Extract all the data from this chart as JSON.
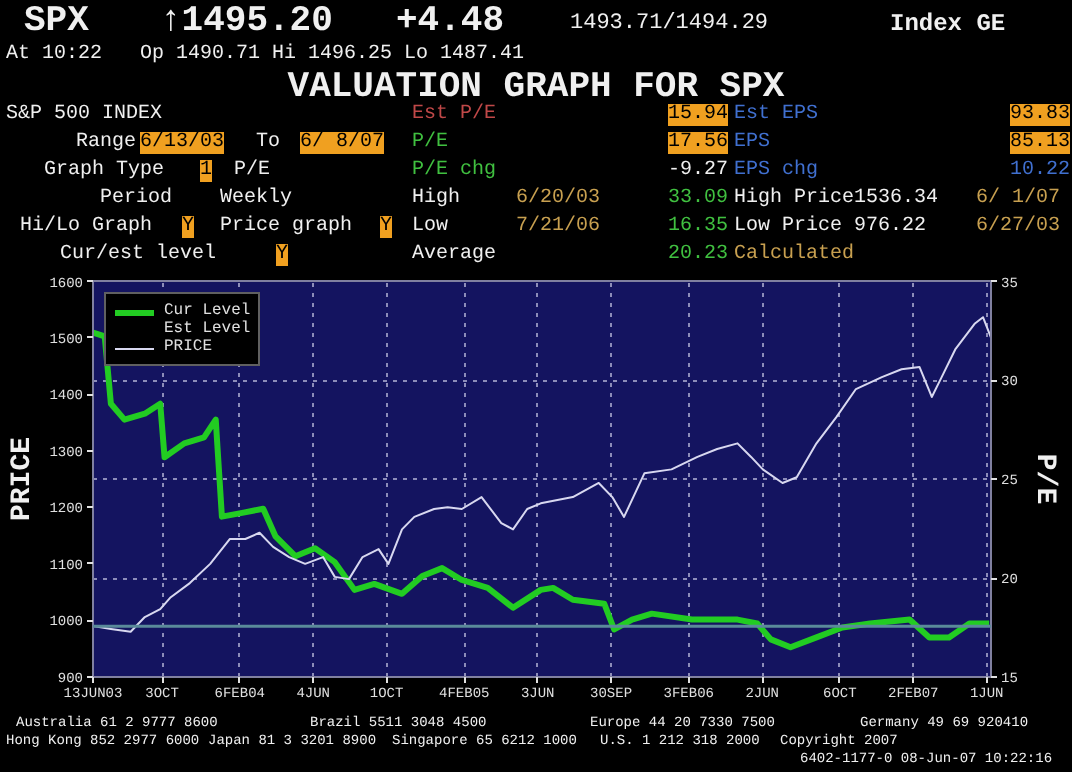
{
  "chart_data": {
    "type": "line",
    "title": "VALUATION GRAPH FOR SPX",
    "ylabel": "PRICE",
    "y2label": "P/E",
    "xlim": [
      "2003-06-13",
      "2007-06-08"
    ],
    "xticks": [
      {
        "value": "2003-06-13",
        "label": "13JUN03"
      },
      {
        "value": "2003-10-03",
        "label": "3OCT"
      },
      {
        "value": "2004-02-06",
        "label": "6FEB04"
      },
      {
        "value": "2004-06-04",
        "label": "4JUN"
      },
      {
        "value": "2004-10-01",
        "label": "1OCT"
      },
      {
        "value": "2005-02-04",
        "label": "4FEB05"
      },
      {
        "value": "2005-06-03",
        "label": "3JUN"
      },
      {
        "value": "2005-09-30",
        "label": "30SEP"
      },
      {
        "value": "2006-02-03",
        "label": "3FEB06"
      },
      {
        "value": "2006-06-02",
        "label": "2JUN"
      },
      {
        "value": "2006-10-06",
        "label": "6OCT"
      },
      {
        "value": "2007-02-02",
        "label": "2FEB07"
      },
      {
        "value": "2007-06-01",
        "label": "1JUN"
      }
    ],
    "ylim": [
      900,
      1600
    ],
    "yticks": [
      900,
      1000,
      1100,
      1200,
      1300,
      1400,
      1500,
      1600
    ],
    "y2lim": [
      15,
      35
    ],
    "y2ticks": [
      15,
      20,
      25,
      30,
      35
    ],
    "grid": true,
    "legend": "top left",
    "ref_lines": [
      {
        "axis": "y2",
        "value": 17.56,
        "color": "#5a8a9a"
      }
    ],
    "series": [
      {
        "name": "Cur Level",
        "color": "#22cc22",
        "axis": "y2",
        "x": [
          "2003-06-13",
          "2003-07-02",
          "2003-07-12",
          "2003-08-03",
          "2003-09-05",
          "2003-09-30",
          "2003-10-07",
          "2003-11-08",
          "2003-12-10",
          "2003-12-29",
          "2004-01-08",
          "2004-02-12",
          "2004-03-15",
          "2004-04-04",
          "2004-05-06",
          "2004-06-07",
          "2004-07-09",
          "2004-08-10",
          "2004-09-11",
          "2004-10-26",
          "2004-11-28",
          "2004-12-30",
          "2005-01-31",
          "2005-03-14",
          "2005-04-24",
          "2005-06-08",
          "2005-06-28",
          "2005-07-30",
          "2005-09-19",
          "2005-10-05",
          "2005-11-03",
          "2005-12-05",
          "2006-02-08",
          "2006-04-23",
          "2006-05-25",
          "2006-06-16",
          "2006-07-18",
          "2006-08-29",
          "2006-10-10",
          "2006-11-24",
          "2007-01-27",
          "2007-02-28",
          "2007-04-01",
          "2007-05-04",
          "2007-06-05"
        ],
        "values": [
          32.4,
          32.2,
          28.8,
          28.0,
          28.3,
          28.8,
          26.1,
          26.8,
          27.1,
          28.0,
          23.1,
          23.3,
          23.5,
          22.1,
          21.1,
          21.5,
          20.8,
          19.4,
          19.7,
          19.2,
          20.1,
          20.5,
          19.9,
          19.5,
          18.5,
          19.4,
          19.5,
          18.9,
          18.7,
          17.4,
          17.9,
          18.2,
          17.9,
          17.9,
          17.7,
          16.9,
          16.5,
          17.0,
          17.5,
          17.7,
          17.9,
          17.0,
          17.0,
          17.7,
          17.7
        ]
      },
      {
        "name": "PRICE",
        "color": "#d8d8f0",
        "x": [
          "2003-06-13",
          "2003-07-12",
          "2003-08-13",
          "2003-09-05",
          "2003-09-30",
          "2003-10-16",
          "2003-11-17",
          "2003-12-20",
          "2004-01-21",
          "2004-02-15",
          "2004-03-09",
          "2004-03-31",
          "2004-04-26",
          "2004-05-22",
          "2004-06-20",
          "2004-07-09",
          "2004-08-01",
          "2004-08-23",
          "2004-09-18",
          "2004-10-04",
          "2004-10-26",
          "2004-11-15",
          "2004-12-17",
          "2005-01-08",
          "2005-01-31",
          "2005-03-04",
          "2005-04-05",
          "2005-04-24",
          "2005-05-17",
          "2005-06-08",
          "2005-07-30",
          "2005-09-10",
          "2005-10-02",
          "2005-10-21",
          "2005-11-23",
          "2006-01-06",
          "2006-02-17",
          "2006-03-21",
          "2006-04-23",
          "2006-05-15",
          "2006-06-03",
          "2006-07-05",
          "2006-07-28",
          "2006-08-29",
          "2006-09-30",
          "2006-11-01",
          "2006-12-13",
          "2007-01-14",
          "2007-02-12",
          "2007-03-04",
          "2007-03-20",
          "2007-04-11",
          "2007-05-13",
          "2007-05-26",
          "2007-06-08"
        ],
        "values": [
          990,
          985,
          980,
          1006,
          1020,
          1040,
          1066,
          1100,
          1144,
          1144,
          1155,
          1130,
          1112,
          1100,
          1112,
          1077,
          1073,
          1112,
          1126,
          1100,
          1161,
          1183,
          1197,
          1200,
          1197,
          1218,
          1172,
          1161,
          1197,
          1207,
          1218,
          1243,
          1218,
          1183,
          1260,
          1267,
          1289,
          1303,
          1313,
          1289,
          1267,
          1243,
          1253,
          1313,
          1359,
          1409,
          1430,
          1444,
          1448,
          1395,
          1430,
          1479,
          1525,
          1536,
          1500
        ]
      }
    ],
    "annotations": [
      "SPX",
      "↑1495.20",
      "+4.48",
      "1493.71/1494.29",
      "Index GE",
      "At 10:22",
      "Op 1490.71 Hi 1496.25 Lo 1487.41",
      "S&P 500 INDEX",
      "Range",
      "6/13/03",
      "To",
      "6/ 8/07",
      "Graph Type",
      "1",
      "P/E",
      "Period",
      "Weekly",
      "Hi/Lo Graph",
      "Y",
      "Price graph",
      "Y",
      "Cur/est level",
      "Y",
      "Est P/E",
      "15.94",
      "Est EPS",
      "93.83",
      "P/E",
      "17.56",
      "EPS",
      "85.13",
      "P/E chg",
      "-9.27",
      "EPS chg",
      "10.22",
      "High",
      "6/20/03",
      "33.09",
      "High Price1536.34",
      "6/ 1/07",
      "Low",
      "7/21/06",
      "16.35",
      "Low Price 976.22",
      "6/27/03",
      "Average",
      "20.23",
      "Calculated",
      "Australia 61 2 9777 8600",
      "Brazil 5511 3048 4500",
      "Europe 44 20 7330 7500",
      "Germany 49 69 920410",
      "Hong Kong 852 2977 6000",
      "Japan 81 3 3201 8900",
      "Singapore 65 6212 1000",
      "U.S. 1 212 318 2000",
      "Copyright 2007",
      "6402-1177-0 08-Jun-07 10:22:16",
      "Est Level"
    ]
  }
}
